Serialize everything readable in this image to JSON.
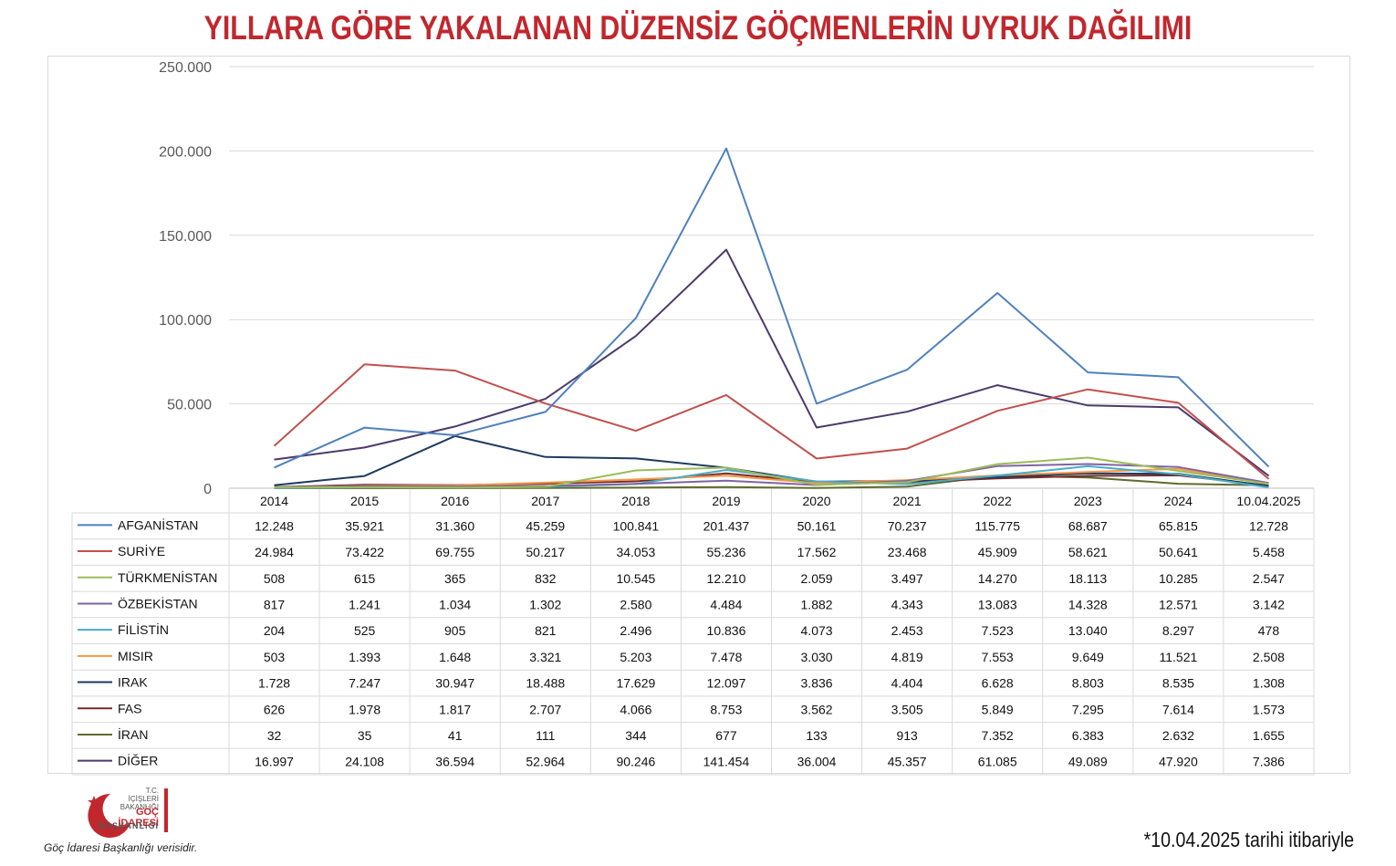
{
  "title": "YILLARA GÖRE YAKALANAN DÜZENSİZ GÖÇMENLERİN UYRUK DAĞILIMI",
  "footnote": "*10.04.2025 tarihi itibariyle",
  "source": "Göç İdaresi Başkanlığı verisidir.",
  "logo": {
    "line1": "T.C.",
    "line2": "İÇİŞLERİ BAKANLIĞI",
    "line3": "GÖÇ İDARESİ",
    "line4": "BAŞKANLIĞI",
    "brand_color": "#c1272d"
  },
  "chart_data": {
    "type": "line",
    "title": "YILLARA GÖRE YAKALANAN DÜZENSİZ GÖÇMENLERİN UYRUK DAĞILIMI",
    "xlabel": "",
    "ylabel": "",
    "ylim": [
      0,
      250000
    ],
    "yticks": [
      0,
      50000,
      100000,
      150000,
      200000,
      250000
    ],
    "ytick_labels": [
      "0",
      "50.000",
      "100.000",
      "150.000",
      "200.000",
      "250.000"
    ],
    "grid": true,
    "legend": "data table below chart",
    "categories": [
      "2014",
      "2015",
      "2016",
      "2017",
      "2018",
      "2019",
      "2020",
      "2021",
      "2022",
      "2023",
      "2024",
      "10.04.2025"
    ],
    "series": [
      {
        "name": "AFGANİSTAN",
        "color": "#4f81bd",
        "values": [
          12248,
          35921,
          31360,
          45259,
          100841,
          201437,
          50161,
          70237,
          115775,
          68687,
          65815,
          12728
        ],
        "labels": [
          "12.248",
          "35.921",
          "31.360",
          "45.259",
          "100.841",
          "201.437",
          "50.161",
          "70.237",
          "115.775",
          "68.687",
          "65.815",
          "12.728"
        ]
      },
      {
        "name": "SURİYE",
        "color": "#c0504d",
        "values": [
          24984,
          73422,
          69755,
          50217,
          34053,
          55236,
          17562,
          23468,
          45909,
          58621,
          50641,
          5458
        ],
        "labels": [
          "24.984",
          "73.422",
          "69.755",
          "50.217",
          "34.053",
          "55.236",
          "17.562",
          "23.468",
          "45.909",
          "58.621",
          "50.641",
          "5.458"
        ]
      },
      {
        "name": "TÜRKMENİSTAN",
        "color": "#9bbb59",
        "values": [
          508,
          615,
          365,
          832,
          10545,
          12210,
          2059,
          3497,
          14270,
          18113,
          10285,
          2547
        ],
        "labels": [
          "508",
          "615",
          "365",
          "832",
          "10.545",
          "12.210",
          "2.059",
          "3.497",
          "14.270",
          "18.113",
          "10.285",
          "2.547"
        ]
      },
      {
        "name": "ÖZBEKİSTAN",
        "color": "#8064a2",
        "values": [
          817,
          1241,
          1034,
          1302,
          2580,
          4484,
          1882,
          4343,
          13083,
          14328,
          12571,
          3142
        ],
        "labels": [
          "817",
          "1.241",
          "1.034",
          "1.302",
          "2.580",
          "4.484",
          "1.882",
          "4.343",
          "13.083",
          "14.328",
          "12.571",
          "3.142"
        ]
      },
      {
        "name": "FİLİSTİN",
        "color": "#4bacc6",
        "values": [
          204,
          525,
          905,
          821,
          2496,
          10836,
          4073,
          2453,
          7523,
          13040,
          8297,
          478
        ],
        "labels": [
          "204",
          "525",
          "905",
          "821",
          "2.496",
          "10.836",
          "4.073",
          "2.453",
          "7.523",
          "13.040",
          "8.297",
          "478"
        ]
      },
      {
        "name": "MISIR",
        "color": "#f79646",
        "values": [
          503,
          1393,
          1648,
          3321,
          5203,
          7478,
          3030,
          4819,
          7553,
          9649,
          11521,
          2508
        ],
        "labels": [
          "503",
          "1.393",
          "1.648",
          "3.321",
          "5.203",
          "7.478",
          "3.030",
          "4.819",
          "7.553",
          "9.649",
          "11.521",
          "2.508"
        ]
      },
      {
        "name": "IRAK",
        "color": "#1f3a5f",
        "values": [
          1728,
          7247,
          30947,
          18488,
          17629,
          12097,
          3836,
          4404,
          6628,
          8803,
          8535,
          1308
        ],
        "labels": [
          "1.728",
          "7.247",
          "30.947",
          "18.488",
          "17.629",
          "12.097",
          "3.836",
          "4.404",
          "6.628",
          "8.803",
          "8.535",
          "1.308"
        ]
      },
      {
        "name": "FAS",
        "color": "#772c2a",
        "values": [
          626,
          1978,
          1817,
          2707,
          4066,
          8753,
          3562,
          3505,
          5849,
          7295,
          7614,
          1573
        ],
        "labels": [
          "626",
          "1.978",
          "1.817",
          "2.707",
          "4.066",
          "8.753",
          "3.562",
          "3.505",
          "5.849",
          "7.295",
          "7.614",
          "1.573"
        ]
      },
      {
        "name": "İRAN",
        "color": "#5f6b2d",
        "values": [
          32,
          35,
          41,
          111,
          344,
          677,
          133,
          913,
          7352,
          6383,
          2632,
          1655
        ],
        "labels": [
          "32",
          "35",
          "41",
          "111",
          "344",
          "677",
          "133",
          "913",
          "7.352",
          "6.383",
          "2.632",
          "1.655"
        ]
      },
      {
        "name": "DİĞER",
        "color": "#4b3a6b",
        "values": [
          16997,
          24108,
          36594,
          52964,
          90246,
          141454,
          36004,
          45357,
          61085,
          49089,
          47920,
          7386
        ],
        "labels": [
          "16.997",
          "24.108",
          "36.594",
          "52.964",
          "90.246",
          "141.454",
          "36.004",
          "45.357",
          "61.085",
          "49.089",
          "47.920",
          "7.386"
        ]
      }
    ]
  }
}
